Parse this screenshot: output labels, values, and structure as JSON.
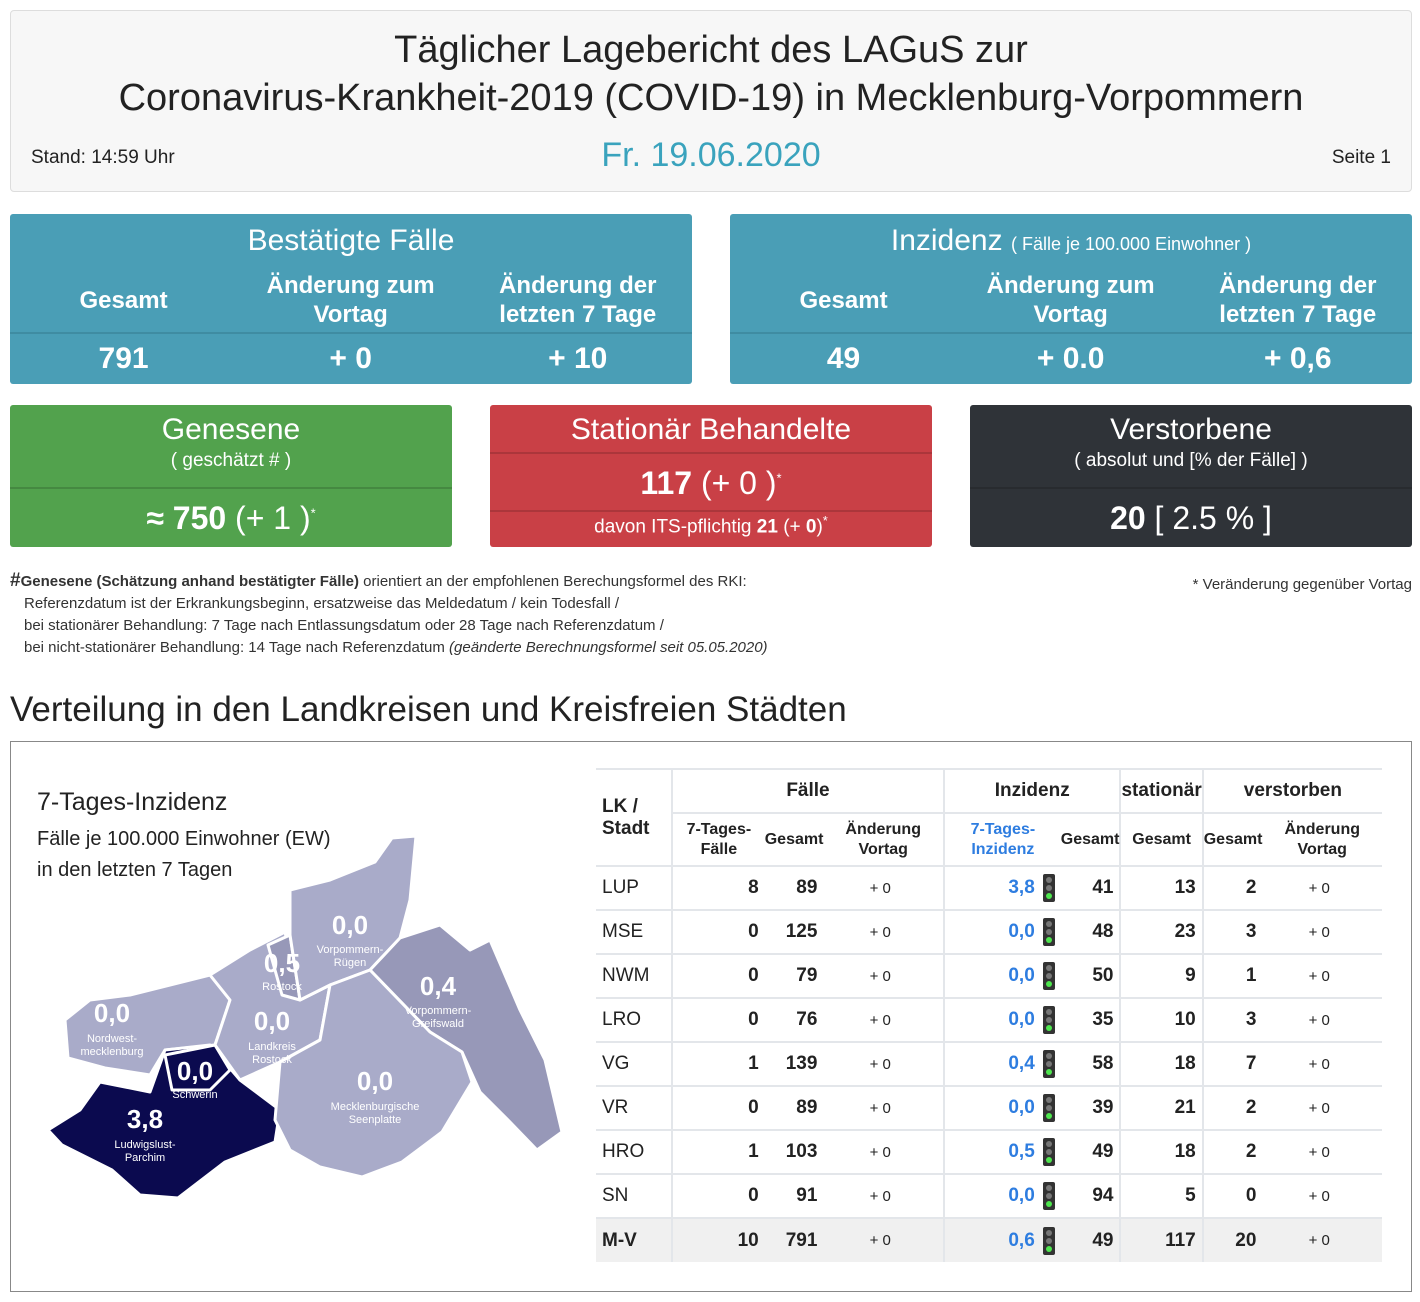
{
  "header": {
    "title_line1": "Täglicher Lagebericht des LAGuS zur",
    "title_line2": "Coronavirus-Krankheit-2019 (COVID-19) in Mecklenburg-Vorpommern",
    "date": "Fr. 19.06.2020",
    "stand": "Stand: 14:59 Uhr",
    "page": "Seite 1"
  },
  "confirmed": {
    "title": "Bestätigte Fälle",
    "cols": [
      "Gesamt",
      "Änderung zum Vortag",
      "Änderung der letzten 7 Tage"
    ],
    "values": [
      "791",
      "+ 0",
      "+ 10"
    ]
  },
  "incidence": {
    "title": "Inzidenz",
    "subtitle": "( Fälle je 100.000 Einwohner )",
    "cols": [
      "Gesamt",
      "Änderung zum Vortag",
      "Änderung der letzten 7 Tage"
    ],
    "values": [
      "49",
      "+ 0.0",
      "+ 0,6"
    ]
  },
  "recovered": {
    "title": "Genesene",
    "subtitle": "( geschätzt # )",
    "prefix": "≈",
    "value": "750",
    "change": "(+ 1 )",
    "mark": "*"
  },
  "hospital": {
    "title": "Stationär Behandelte",
    "value": "117",
    "change": "(+ 0 )",
    "mark": "*",
    "its_label": "davon ITS-pflichtig",
    "its_value": "21",
    "its_change_pre": "(+ ",
    "its_change": "0",
    "its_change_post": ")"
  },
  "deaths": {
    "title": "Verstorbene",
    "subtitle": "( absolut und [% der Fälle] )",
    "value": "20",
    "percent": "[ 2.5 % ]"
  },
  "colors": {
    "teal": "#4a9eb6",
    "green": "#52a24d",
    "red": "#c94046",
    "dark": "#2f3338",
    "date": "#3aa3bd",
    "incidence_link": "#2e7de0",
    "map_light": "#a9abc9",
    "map_mid": "#9798b8",
    "map_dark": "#0b0a4f"
  },
  "footnote": {
    "hash": "#",
    "bold": "Genesene (Schätzung anhand bestätigter Fälle)",
    "line1": " orientiert an der empfohlenen Berechungsformel des RKI:",
    "line2": "Referenzdatum ist der Erkrankungsbeginn, ersatzweise das Meldedatum / kein Todesfall /",
    "line3": "bei stationärer Behandlung: 7 Tage nach Entlassungsdatum oder 28 Tage nach Referenzdatum /",
    "line4": "bei nicht-stationärer Behandlung: 14 Tage nach Referenzdatum ",
    "line4_italic": "(geänderte Berechnungsformel seit 05.05.2020)",
    "change_note": "* Veränderung gegenüber Vortag"
  },
  "section_title": "Verteilung in den Landkreisen und Kreisfreien Städten",
  "map": {
    "title": "7-Tages-Inzidenz",
    "desc1": "Fälle je 100.000 Einwohner (EW)",
    "desc2": "in den letzten 7 Tagen",
    "regions": [
      {
        "name": "Nordwest-\nmecklenburg",
        "value": "0,0"
      },
      {
        "name": "Ludwigslust-\nParchim",
        "value": "3,8"
      },
      {
        "name": "Schwerin",
        "value": "0,0"
      },
      {
        "name": "Landkreis\nRostock",
        "value": "0,0"
      },
      {
        "name": "Rostock",
        "value": "0,5"
      },
      {
        "name": "Vorpommern-\nRügen",
        "value": "0,0"
      },
      {
        "name": "Vorpommern-\nGreifswald",
        "value": "0,4"
      },
      {
        "name": "Mecklenburgische\nSeenplatte",
        "value": "0,0"
      }
    ]
  },
  "table": {
    "h_lk": "LK / Stadt",
    "h_faelle": "Fälle",
    "h_inzidenz": "Inzidenz",
    "h_stationaer": "stationär",
    "h_verstorben": "verstorben",
    "sub": [
      "7-Tages-Fälle",
      "Gesamt",
      "Änderung Vortag",
      "7-Tages-Inzidenz",
      "Gesamt",
      "Gesamt",
      "Gesamt",
      "Änderung Vortag"
    ],
    "rows": [
      [
        "LUP",
        "8",
        "89",
        "+ 0",
        "3,8",
        "41",
        "13",
        "2",
        "+ 0"
      ],
      [
        "MSE",
        "0",
        "125",
        "+ 0",
        "0,0",
        "48",
        "23",
        "3",
        "+ 0"
      ],
      [
        "NWM",
        "0",
        "79",
        "+ 0",
        "0,0",
        "50",
        "9",
        "1",
        "+ 0"
      ],
      [
        "LRO",
        "0",
        "76",
        "+ 0",
        "0,0",
        "35",
        "10",
        "3",
        "+ 0"
      ],
      [
        "VG",
        "1",
        "139",
        "+ 0",
        "0,4",
        "58",
        "18",
        "7",
        "+ 0"
      ],
      [
        "VR",
        "0",
        "89",
        "+ 0",
        "0,0",
        "39",
        "21",
        "2",
        "+ 0"
      ],
      [
        "HRO",
        "1",
        "103",
        "+ 0",
        "0,5",
        "49",
        "18",
        "2",
        "+ 0"
      ],
      [
        "SN",
        "0",
        "91",
        "+ 0",
        "0,0",
        "94",
        "5",
        "0",
        "+ 0"
      ],
      [
        "M-V",
        "10",
        "791",
        "+ 0",
        "0,6",
        "49",
        "117",
        "20",
        "+ 0"
      ]
    ],
    "traffic_light": "green"
  }
}
